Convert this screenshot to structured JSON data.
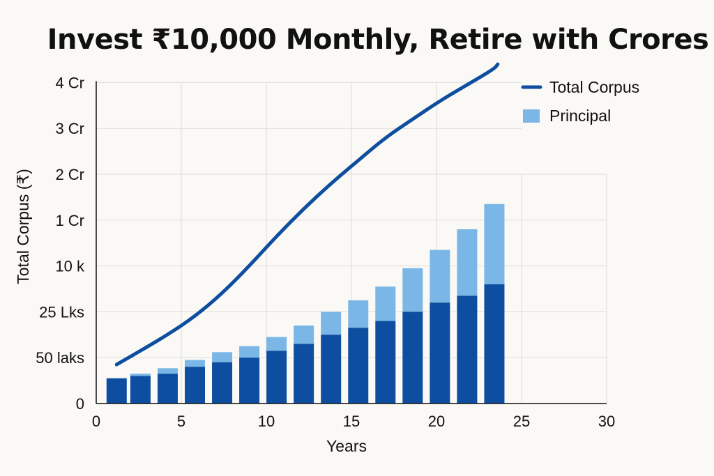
{
  "chart_data": {
    "type": "bar",
    "title": "Invest ₹10,000 Monthly, Retire with Crores",
    "xlabel": "Years",
    "ylabel": "Total Corpus (₹)",
    "xlim": [
      0,
      30
    ],
    "x_ticks": [
      "0",
      "5",
      "10",
      "15",
      "20",
      "25",
      "30"
    ],
    "y_ticks": [
      "0",
      "50 laks",
      "25 Lks",
      "10 k",
      "1 Cr",
      "2 Cr",
      "3 Cr",
      "4 Cr"
    ],
    "grid": true,
    "legend_position": "top-right",
    "colors": {
      "principal_dark": "#0d4ea0",
      "principal_light": "#7ab7e6",
      "line": "#0d4ea0",
      "grid": "#dcdcdc",
      "axis": "#111111"
    },
    "series": [
      {
        "name": "Total Corpus",
        "kind": "line",
        "x": [
          1.2,
          2.6,
          4.2,
          5.8,
          7.4,
          9.0,
          10.6,
          12.2,
          13.8,
          15.4,
          17.0,
          18.6,
          20.2,
          21.8,
          23.4,
          23.6
        ],
        "y": [
          0.85,
          1.15,
          1.5,
          1.9,
          2.4,
          3.0,
          3.65,
          4.25,
          4.8,
          5.3,
          5.8,
          6.2,
          6.6,
          6.95,
          7.3,
          7.4
        ]
      },
      {
        "name": "Principal",
        "kind": "stacked-bar",
        "x": [
          1.2,
          2.6,
          4.2,
          5.8,
          7.4,
          9.0,
          10.6,
          12.2,
          13.8,
          15.4,
          17.0,
          18.6,
          20.2,
          21.8,
          23.4
        ],
        "dark": [
          0.55,
          0.6,
          0.65,
          0.8,
          0.9,
          1.0,
          1.15,
          1.3,
          1.5,
          1.65,
          1.8,
          2.0,
          2.2,
          2.35,
          2.6
        ],
        "light": [
          0.0,
          0.05,
          0.12,
          0.15,
          0.22,
          0.25,
          0.3,
          0.4,
          0.5,
          0.6,
          0.75,
          0.95,
          1.15,
          1.45,
          1.75
        ]
      }
    ]
  }
}
